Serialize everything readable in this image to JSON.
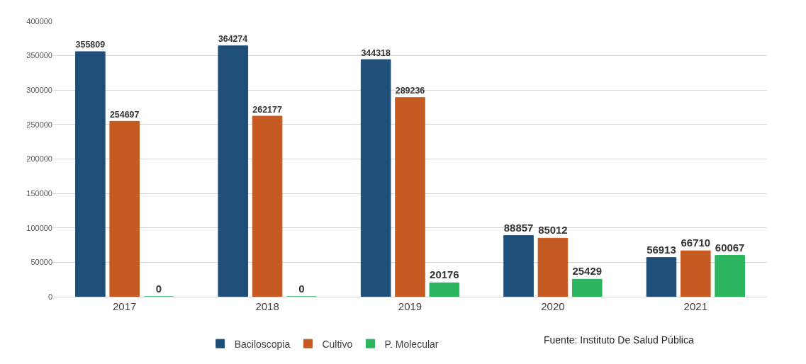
{
  "chart_data": {
    "type": "bar",
    "categories": [
      "2017",
      "2018",
      "2019",
      "2020",
      "2021"
    ],
    "series": [
      {
        "name": "Baciloscopia",
        "color": "#1f4e79",
        "values": [
          355809,
          364274,
          344318,
          88857,
          56913
        ]
      },
      {
        "name": "Cultivo",
        "color": "#c55a22",
        "values": [
          254697,
          262177,
          289236,
          85012,
          66710
        ]
      },
      {
        "name": "P. Molecular",
        "color": "#2bb55e",
        "values": [
          0,
          0,
          20176,
          25429,
          60067
        ]
      }
    ],
    "ylim": [
      0,
      400000
    ],
    "yticks": [
      0,
      50000,
      100000,
      150000,
      200000,
      250000,
      300000,
      350000,
      400000
    ],
    "grid": "y",
    "legend": "bottom",
    "data_labels": true,
    "annotations": [
      "Fuente: Instituto De Salud Pública"
    ]
  }
}
